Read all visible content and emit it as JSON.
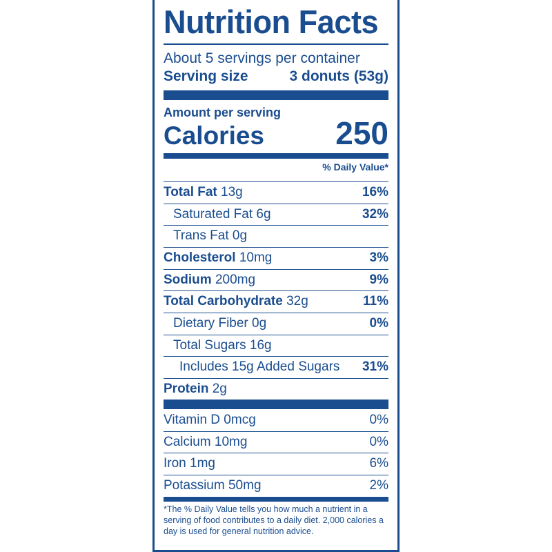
{
  "label": {
    "title": "Nutrition Facts",
    "servings_per_container": "About 5 servings per container",
    "serving_size_label": "Serving size",
    "serving_size_value": "3 donuts (53g)",
    "amount_per_serving": "Amount per serving",
    "calories_label": "Calories",
    "calories_value": "250",
    "daily_value_header": "% Daily Value*",
    "nutrients": [
      {
        "name": "Total Fat",
        "amount": "13g",
        "dv": "16%"
      },
      {
        "name": "Saturated Fat",
        "amount": "6g",
        "dv": "32%"
      },
      {
        "name": "Trans Fat",
        "amount": "0g",
        "dv": ""
      },
      {
        "name": "Cholesterol",
        "amount": "10mg",
        "dv": "3%"
      },
      {
        "name": "Sodium",
        "amount": "200mg",
        "dv": "9%"
      },
      {
        "name": "Total Carbohydrate",
        "amount": "32g",
        "dv": "11%"
      },
      {
        "name": "Dietary Fiber",
        "amount": "0g",
        "dv": "0%"
      },
      {
        "name": "Total Sugars",
        "amount": "16g",
        "dv": ""
      },
      {
        "name": "Includes 15g Added Sugars",
        "amount": "",
        "dv": "31%"
      },
      {
        "name": "Protein",
        "amount": "2g",
        "dv": ""
      }
    ],
    "vitamins": [
      {
        "name": "Vitamin D",
        "amount": "0mcg",
        "dv": "0%"
      },
      {
        "name": "Calcium",
        "amount": "10mg",
        "dv": "0%"
      },
      {
        "name": "Iron",
        "amount": "1mg",
        "dv": "6%"
      },
      {
        "name": "Potassium",
        "amount": "50mg",
        "dv": "2%"
      }
    ],
    "footnote": "*The % Daily Value tells you how much a nutrient in a serving of food contributes to a daily diet. 2,000 calories a day is used for general nutrition advice."
  },
  "colors": {
    "ink": "#1a4d8f",
    "background": "#ffffff"
  }
}
